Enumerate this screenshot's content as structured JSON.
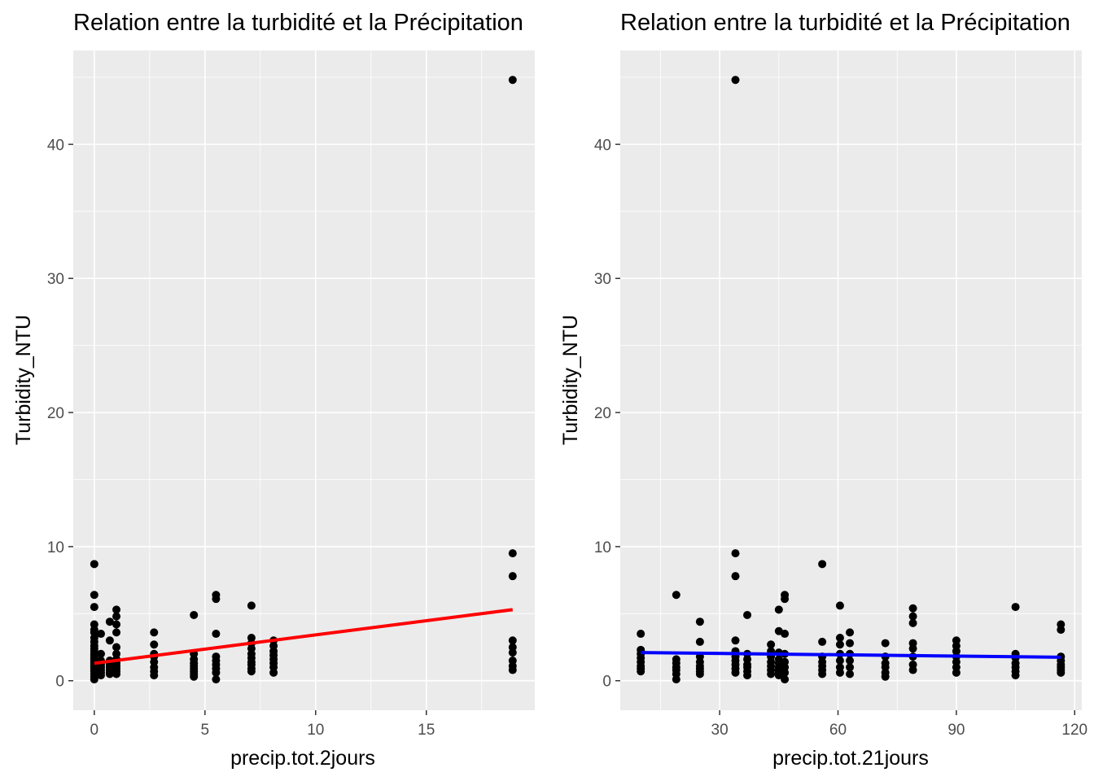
{
  "chart_data": [
    {
      "type": "scatter",
      "title": "Relation entre la turbidité et la Précipitation",
      "xlabel": "precip.tot.2jours",
      "ylabel": "Turbidity_NTU",
      "xlim": [
        -0.95,
        19.9
      ],
      "ylim": [
        -2.2,
        47
      ],
      "xticks": [
        0,
        5,
        10,
        15
      ],
      "yticks": [
        0,
        10,
        20,
        30,
        40
      ],
      "grid": true,
      "trend_line": {
        "color": "#ff0000",
        "x": [
          0,
          18.9
        ],
        "y": [
          1.3,
          5.3
        ]
      },
      "points": {
        "x": [
          0,
          0,
          0,
          0,
          0,
          0,
          0,
          0,
          0,
          0,
          0,
          0,
          0,
          0,
          0,
          0,
          0,
          0,
          0,
          0,
          0,
          0,
          0,
          0,
          0,
          0,
          0,
          0,
          0.3,
          0.3,
          0.3,
          0.3,
          0.3,
          0.3,
          0.3,
          0.3,
          0.7,
          0.7,
          0.7,
          0.7,
          0.7,
          0.7,
          0.7,
          0.7,
          1,
          1,
          1,
          1,
          1,
          1,
          1,
          1,
          1,
          1,
          1,
          1,
          2.7,
          2.7,
          2.7,
          2.7,
          2.7,
          2.7,
          2.7,
          2.7,
          4.5,
          4.5,
          4.5,
          4.5,
          4.5,
          4.5,
          4.5,
          4.5,
          4.5,
          5.5,
          5.5,
          5.5,
          5.5,
          5.5,
          5.5,
          5.5,
          5.5,
          5.5,
          7.1,
          7.1,
          7.1,
          7.1,
          7.1,
          7.1,
          7.1,
          7.1,
          7.1,
          7.1,
          8.1,
          8.1,
          8.1,
          8.1,
          8.1,
          8.1,
          8.1,
          8.1,
          18.9,
          18.9,
          18.9,
          18.9,
          18.9,
          18.9,
          18.9,
          18.9,
          18.9
        ],
        "y": [
          8.7,
          6.4,
          5.5,
          4.2,
          3.8,
          3.6,
          3.2,
          2.9,
          2.6,
          2.4,
          2.2,
          2.0,
          1.9,
          1.8,
          1.7,
          1.6,
          1.5,
          1.4,
          1.3,
          1.2,
          1.1,
          1.0,
          0.9,
          0.8,
          0.7,
          0.5,
          0.3,
          0.1,
          3.5,
          2.0,
          1.5,
          1.2,
          1.0,
          0.8,
          0.6,
          0.4,
          4.4,
          3.0,
          1.5,
          1.2,
          1.0,
          0.8,
          0.6,
          0.5,
          5.3,
          4.8,
          4.2,
          3.6,
          2.5,
          2.0,
          1.6,
          1.3,
          1.1,
          0.9,
          0.7,
          0.5,
          3.6,
          2.7,
          2.0,
          1.8,
          1.4,
          1.0,
          0.7,
          0.4,
          4.9,
          2.0,
          1.6,
          1.3,
          1.1,
          0.9,
          0.7,
          0.5,
          0.3,
          6.4,
          6.1,
          3.5,
          1.8,
          1.5,
          1.2,
          0.9,
          0.6,
          0.1,
          5.6,
          3.2,
          2.8,
          2.4,
          2.0,
          1.7,
          1.4,
          1.2,
          0.9,
          0.7,
          3.0,
          2.6,
          2.2,
          1.9,
          1.6,
          1.3,
          1.0,
          0.6,
          44.8,
          9.5,
          7.8,
          3.0,
          2.5,
          2.1,
          1.5,
          1.1,
          0.8
        ]
      }
    },
    {
      "type": "scatter",
      "title": "Relation entre la turbidité et la Précipitation",
      "xlabel": "precip.tot.21jours",
      "ylabel": "Turbidity_NTU",
      "xlim": [
        4.8,
        121.8
      ],
      "ylim": [
        -2.2,
        47
      ],
      "xticks": [
        30,
        60,
        90,
        120
      ],
      "yticks": [
        0,
        10,
        20,
        30,
        40
      ],
      "grid": true,
      "trend_line": {
        "color": "#0000ff",
        "x": [
          10,
          116.5
        ],
        "y": [
          2.1,
          1.75
        ]
      },
      "points": {
        "x": [
          10,
          10,
          10,
          10,
          10,
          10,
          10,
          10,
          19,
          19,
          19,
          19,
          19,
          19,
          19,
          25,
          25,
          25,
          25,
          25,
          25,
          25,
          25,
          34,
          34,
          34,
          34,
          34,
          34,
          34,
          34,
          34,
          34,
          37,
          37,
          37,
          37,
          37,
          37,
          37,
          43,
          43,
          43,
          43,
          43,
          43,
          43,
          45,
          45,
          45,
          45,
          45,
          45,
          45,
          45,
          45,
          46.5,
          46.5,
          46.5,
          46.5,
          46.5,
          46.5,
          46.5,
          46.5,
          56,
          56,
          56,
          56,
          56,
          56,
          56,
          60.5,
          60.5,
          60.5,
          60.5,
          60.5,
          60.5,
          60.5,
          63,
          63,
          63,
          63,
          63,
          63,
          72,
          72,
          72,
          72,
          72,
          72,
          79,
          79,
          79,
          79,
          79,
          79,
          79,
          79,
          90,
          90,
          90,
          90,
          90,
          90,
          90,
          105,
          105,
          105,
          105,
          105,
          105,
          105,
          116.5,
          116.5,
          116.5,
          116.5,
          116.5,
          116.5,
          116.5,
          116.5
        ],
        "y": [
          3.5,
          2.3,
          2.0,
          1.7,
          1.4,
          1.1,
          0.9,
          0.7,
          6.4,
          1.6,
          1.3,
          1.0,
          0.8,
          0.5,
          0.1,
          4.4,
          2.9,
          1.8,
          1.4,
          1.1,
          0.9,
          0.7,
          0.5,
          44.8,
          9.5,
          7.8,
          3.0,
          2.2,
          1.8,
          1.5,
          1.2,
          0.9,
          0.6,
          4.9,
          2.0,
          1.6,
          1.2,
          1.0,
          0.7,
          0.4,
          2.7,
          2.2,
          1.8,
          1.4,
          1.1,
          0.8,
          0.5,
          5.3,
          3.7,
          2.1,
          1.6,
          1.3,
          1.0,
          0.8,
          0.6,
          0.4,
          6.4,
          6.1,
          3.5,
          2.0,
          1.4,
          1.0,
          0.6,
          0.1,
          8.7,
          2.9,
          1.8,
          1.4,
          1.1,
          0.8,
          0.5,
          5.6,
          3.2,
          2.7,
          2.0,
          1.5,
          1.0,
          0.6,
          3.6,
          2.8,
          2.0,
          1.5,
          1.0,
          0.5,
          2.8,
          1.8,
          1.3,
          1.0,
          0.6,
          0.3,
          5.4,
          4.8,
          4.3,
          2.8,
          2.4,
          1.8,
          1.2,
          0.8,
          3.0,
          2.6,
          2.2,
          1.8,
          1.4,
          1.0,
          0.6,
          5.5,
          2.0,
          1.7,
          1.3,
          1.0,
          0.7,
          0.4,
          4.2,
          3.8,
          1.8,
          1.5,
          1.2,
          1.0,
          0.8,
          0.6
        ]
      }
    }
  ]
}
